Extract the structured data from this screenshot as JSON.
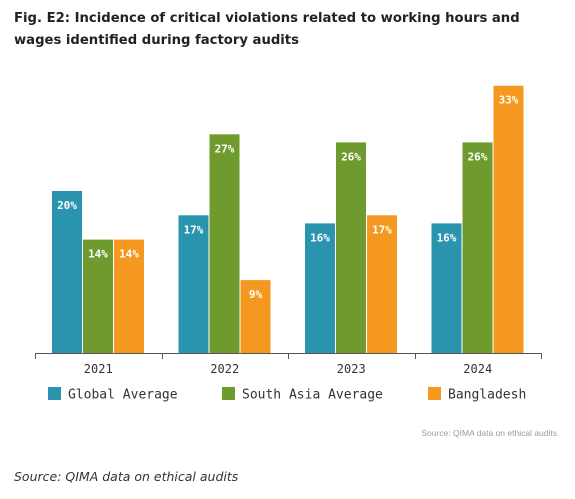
{
  "figure": {
    "title": "Fig. E2: Incidence of critical violations related to working hours and wages identified during factory audits",
    "inner_source": "Source: QIMA data on ethical audits",
    "outer_source": "Source: QIMA data on ethical audits"
  },
  "chart_data": {
    "type": "bar",
    "title": "Fig. E2: Incidence of critical violations related to working hours and wages identified during factory audits",
    "xlabel": "",
    "ylabel": "",
    "ylim": [
      0,
      33
    ],
    "grid": false,
    "legend": "bottom",
    "categories": [
      "2021",
      "2022",
      "2023",
      "2024"
    ],
    "series": [
      {
        "name": "Global Average",
        "color": "#2a93ad",
        "values": [
          20,
          17,
          16,
          16
        ],
        "labels": [
          "20%",
          "17%",
          "16%",
          "16%"
        ]
      },
      {
        "name": "South Asia Average",
        "color": "#6f9a2e",
        "values": [
          14,
          27,
          26,
          26
        ],
        "labels": [
          "14%",
          "27%",
          "26%",
          "26%"
        ]
      },
      {
        "name": "Bangladesh",
        "color": "#f5981f",
        "values": [
          14,
          9,
          17,
          33
        ],
        "labels": [
          "14%",
          "9%",
          "17%",
          "33%"
        ]
      }
    ]
  }
}
